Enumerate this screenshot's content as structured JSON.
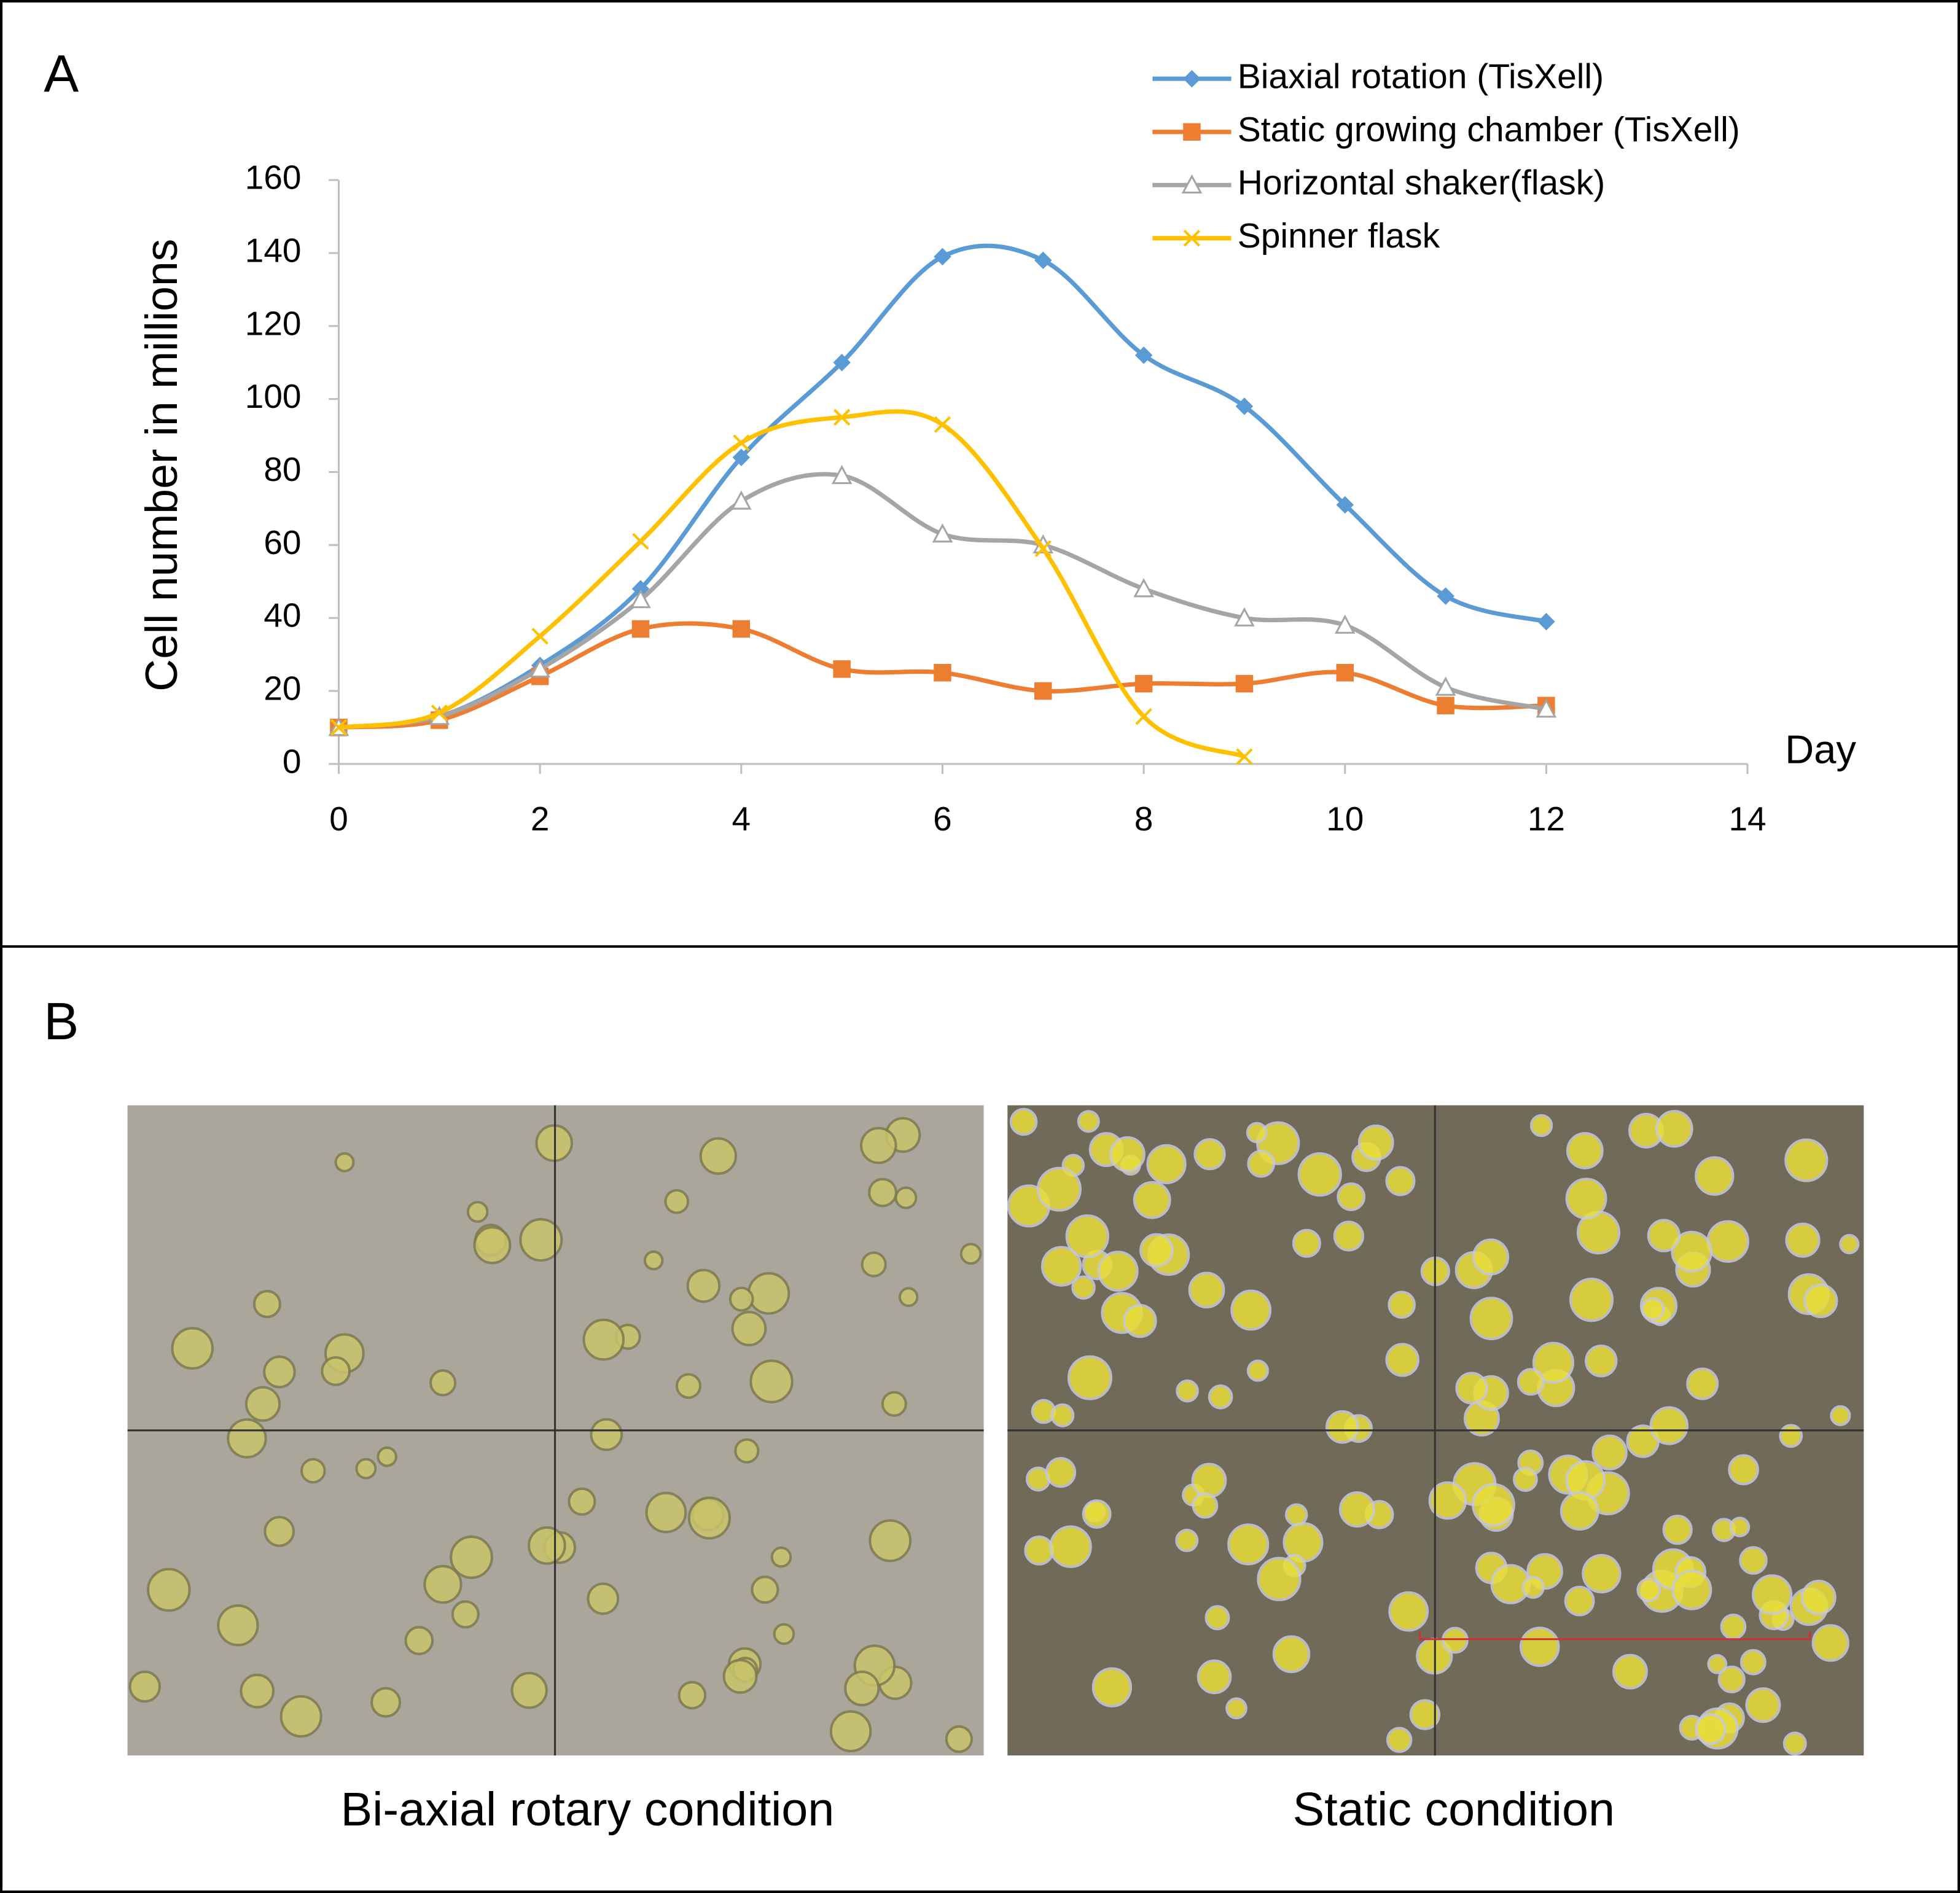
{
  "panel_a": {
    "label": "A"
  },
  "chart_data": {
    "type": "line",
    "x_label": "Day",
    "y_label": "Cell number in millions",
    "x": [
      0,
      1,
      2,
      3,
      4,
      5,
      6,
      7,
      8,
      9,
      10,
      11,
      12
    ],
    "xlim": [
      0,
      14
    ],
    "xticks": [
      0,
      2,
      4,
      6,
      8,
      10,
      12,
      14
    ],
    "ylim": [
      0,
      160
    ],
    "yticks": [
      0,
      20,
      40,
      60,
      80,
      100,
      120,
      140,
      160
    ],
    "grid": false,
    "smooth": true,
    "legend": "top-right",
    "series": [
      {
        "name": "Biaxial rotation (TisXell)",
        "color": "#5b9bd5",
        "marker": "diamond",
        "values": [
          10,
          13,
          27,
          48,
          84,
          110,
          139,
          138,
          112,
          98,
          71,
          46,
          39
        ]
      },
      {
        "name": "Static growing chamber (TisXell)",
        "color": "#ed7d31",
        "marker": "square",
        "values": [
          10,
          12,
          24,
          37,
          37,
          26,
          25,
          20,
          22,
          22,
          25,
          16,
          16
        ]
      },
      {
        "name": "Horizontal shaker(flask)",
        "color": "#a5a5a5",
        "marker": "triangle",
        "values": [
          10,
          13,
          26,
          45,
          72,
          79,
          63,
          60,
          48,
          40,
          38,
          21,
          15
        ]
      },
      {
        "name": "Spinner flask",
        "color": "#ffc000",
        "marker": "x",
        "values": [
          10,
          14,
          35,
          61,
          88,
          95,
          93,
          59,
          13,
          2,
          null,
          null,
          null
        ]
      }
    ]
  },
  "panel_b": {
    "label": "B",
    "captions": [
      "Bi-axial rotary condition",
      "Static condition"
    ]
  }
}
